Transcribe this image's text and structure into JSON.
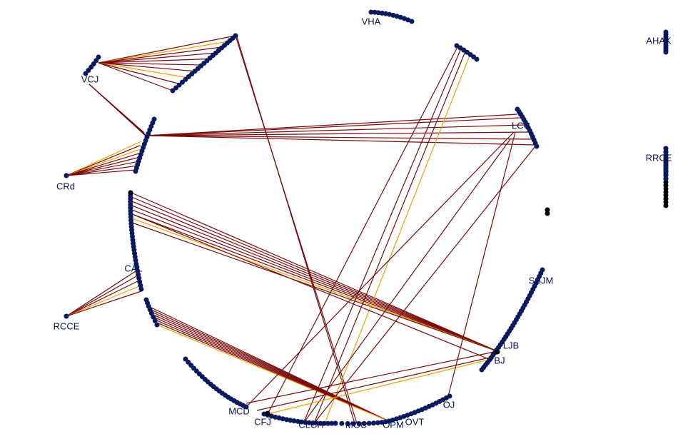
{
  "labels": [
    "VHA",
    "AHAK",
    "VCJ",
    "LCC",
    "CRd",
    "RRCE",
    "SSJM",
    "CAL",
    "RCCE",
    "LJB",
    "BJ",
    "OJ",
    "MCD",
    "CFJ",
    "CLCH",
    "MGC",
    "OPM",
    "OVT"
  ]
}
